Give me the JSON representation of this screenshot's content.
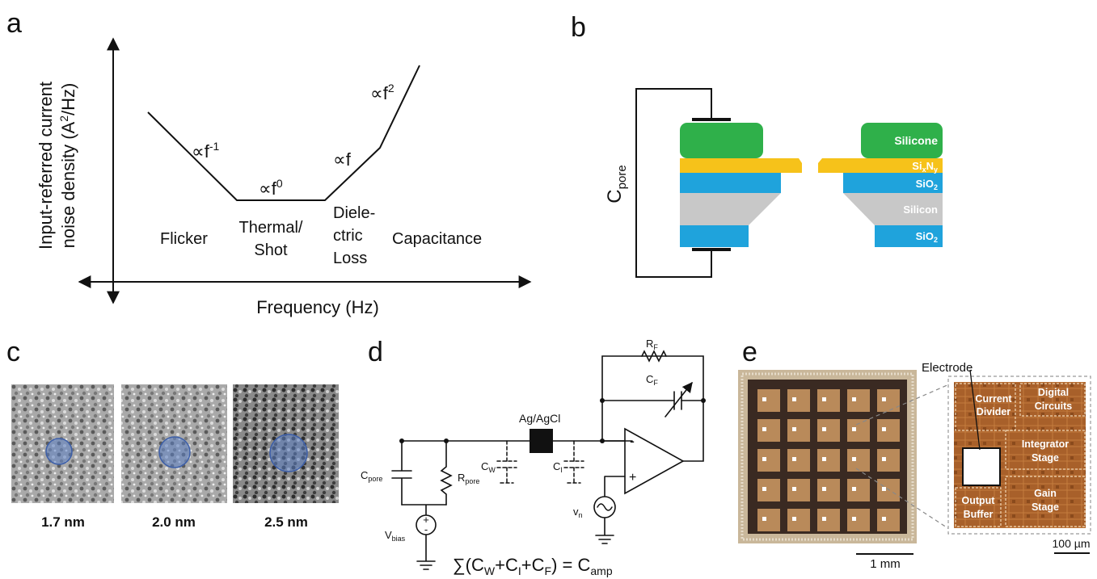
{
  "panels": {
    "a": {
      "label": "a",
      "y_label_line1": "Input-referred current",
      "y_label_line2_prefix": "noise density (A",
      "y_label_line2_sup": "2",
      "y_label_line2_suffix": "/Hz)",
      "x_label": "Frequency (Hz)",
      "slopes": [
        {
          "base": "∝f",
          "exp": "-1"
        },
        {
          "base": "∝f",
          "exp": "0"
        },
        {
          "base": "∝f",
          "exp": ""
        },
        {
          "base": "∝f",
          "exp": "2"
        }
      ],
      "regions": {
        "flicker": "Flicker",
        "thermal_1": "Thermal/",
        "thermal_2": "Shot",
        "dielectric_1": "Diele-",
        "dielectric_2": "ctric",
        "dielectric_3": "Loss",
        "capacitance": "Capacitance"
      }
    },
    "b": {
      "label": "b",
      "c_main": "C",
      "c_sub": "pore",
      "layers": {
        "silicone": "Silicone",
        "sinx_base": "Si",
        "sinx_sub1": "x",
        "sinx_mid": "N",
        "sinx_sub2": "y",
        "sio2_top_base": "SiO",
        "sio2_top_sub": "2",
        "silicon": "Silicon",
        "sio2_bot_base": "SiO",
        "sio2_bot_sub": "2"
      },
      "colors": {
        "silicone": "#2fb04a",
        "sinx": "#f6c21a",
        "sio2": "#1fa3dc",
        "silicon": "#c8c8c8"
      }
    },
    "c": {
      "label": "c",
      "pores": [
        "1.7 nm",
        "2.0 nm",
        "2.5 nm"
      ],
      "pore_color": "#5b7fc4"
    },
    "d": {
      "label": "d",
      "ag": "Ag/AgCl",
      "rf_base": "R",
      "rf_sub": "F",
      "cf_base": "C",
      "cf_sub": "F",
      "cw_base": "C",
      "cw_sub": "W",
      "ci_base": "C",
      "ci_sub": "I",
      "cpore_base": "C",
      "cpore_sub": "pore",
      "rpore_base": "R",
      "rpore_sub": "pore",
      "vbias_base": "V",
      "vbias_sub": "bias",
      "vn_base": "v",
      "vn_sub": "n",
      "minus": "-",
      "plus": "+",
      "src_plus": "+",
      "src_minus": "-",
      "eq_1": "∑(C",
      "eq_w": "W",
      "eq_2": "+C",
      "eq_i": "I",
      "eq_3": "+C",
      "eq_f": "F",
      "eq_4": ") = C",
      "eq_amp": "amp"
    },
    "e": {
      "label": "e",
      "electrode": "Electrode",
      "blocks": {
        "current_1": "Current",
        "current_2": "Divider",
        "digital_1": "Digital",
        "digital_2": "Circuits",
        "integrator_1": "Integrator",
        "integrator_2": "Stage",
        "output_1": "Output",
        "output_2": "Buffer",
        "gain_1": "Gain",
        "gain_2": "Stage"
      },
      "scale_left": "1 mm",
      "scale_right": "100 µm",
      "colors": {
        "die": "#3a2a22",
        "pad": "#b98a5a",
        "zoom": "#b0682e"
      }
    }
  }
}
